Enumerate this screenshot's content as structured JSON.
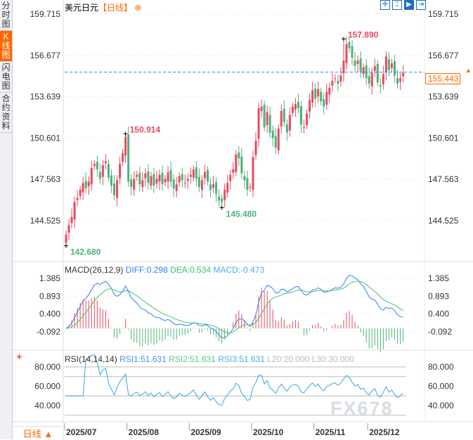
{
  "sidebar": {
    "tabs": [
      "分时图",
      "K线图",
      "闪电图",
      "合约资料"
    ],
    "active": 1
  },
  "header": {
    "symbol": "美元日元",
    "period": "【日线】",
    "add_icon": "circle-plus-icon"
  },
  "toolbar": {
    "icons": [
      "crosshair-icon",
      "zoom-range-icon",
      "play-forward-icon",
      "jump-end-icon"
    ]
  },
  "colors": {
    "up": "#e84a5f",
    "down": "#4bb37a",
    "diff": "#2f80ed",
    "dea": "#3cc36b",
    "rsi": "#3aa6e0",
    "accent": "#ff6600"
  },
  "price_axis": {
    "ticks": [
      "159.715",
      "156.677",
      "153.639",
      "150.601",
      "147.563",
      "144.525"
    ],
    "current": "155.443"
  },
  "macd": {
    "label": "MACD(26,12,9)",
    "diff": "DIFF:0.298",
    "dea": "DEA:0.534",
    "macd": "MACD:-0.473",
    "ticks": [
      "1.385",
      "0.893",
      "0.400",
      "-0.092"
    ]
  },
  "rsi": {
    "label": "RSI(14,14,14)",
    "rsi1": "RSI1:51.631",
    "rsi2": "RSI2:51.631",
    "rsi3": "RSI3:51.631",
    "l20": "L20:20.000",
    "l30": "L30:30.000",
    "ticks": [
      "80.000",
      "60.000",
      "40.000"
    ],
    "icon": "sun-settings-icon"
  },
  "footer": {
    "period_button": "日线 ▲",
    "months": [
      "2025/07",
      "2025/08",
      "2025/09",
      "2025/10",
      "2025/11",
      "2025/12"
    ]
  },
  "watermark": "FX678",
  "chart_data": {
    "type": "candlestick",
    "ylim": [
      142.0,
      160.5
    ],
    "months_start_index": [
      0,
      22,
      44,
      66,
      88,
      107
    ],
    "closes": [
      143.5,
      144.2,
      144.8,
      145.9,
      146.2,
      146.8,
      147.3,
      146.9,
      147.4,
      148.4,
      148.7,
      148.3,
      147.6,
      148.6,
      148.9,
      147.7,
      147.1,
      146.4,
      147.5,
      148.7,
      149.5,
      150.7,
      147.4,
      147.0,
      147.6,
      147.9,
      147.2,
      147.5,
      148.0,
      147.3,
      147.8,
      147.1,
      147.6,
      147.9,
      147.2,
      147.6,
      148.1,
      147.4,
      146.9,
      147.2,
      147.8,
      147.5,
      147.3,
      147.6,
      147.9,
      148.3,
      147.6,
      147.0,
      147.5,
      148.1,
      147.4,
      146.8,
      147.2,
      146.5,
      146.0,
      145.9,
      146.8,
      147.3,
      147.9,
      148.3,
      149.4,
      149.1,
      148.0,
      147.5,
      146.8,
      147.0,
      149.2,
      150.4,
      152.8,
      152.9,
      151.4,
      152.5,
      151.0,
      150.6,
      149.9,
      151.3,
      152.6,
      151.8,
      151.0,
      152.3,
      152.9,
      153.1,
      152.8,
      151.6,
      151.4,
      152.4,
      153.4,
      154.1,
      153.5,
      154.2,
      153.3,
      152.9,
      154.0,
      154.3,
      154.8,
      155.0,
      154.6,
      155.2,
      156.3,
      157.5,
      157.2,
      156.5,
      155.9,
      156.3,
      155.5,
      155.8,
      155.0,
      154.6,
      155.4,
      155.9,
      154.7,
      154.4,
      155.3,
      156.6,
      155.6,
      156.1,
      155.2,
      154.6,
      155.0,
      155.4
    ],
    "annotations": [
      {
        "label": "157.890",
        "value": 157.89,
        "candle": 98,
        "type": "high"
      },
      {
        "label": "150.914",
        "value": 150.914,
        "candle": 21,
        "type": "high"
      },
      {
        "label": "145.480",
        "value": 145.48,
        "candle": 55,
        "type": "low"
      },
      {
        "label": "142.680",
        "value": 142.68,
        "candle": 0,
        "type": "low"
      }
    ],
    "current_price": 155.443,
    "macd_ylim": [
      -0.35,
      1.6
    ],
    "rsi_ylim": [
      20,
      90
    ]
  }
}
